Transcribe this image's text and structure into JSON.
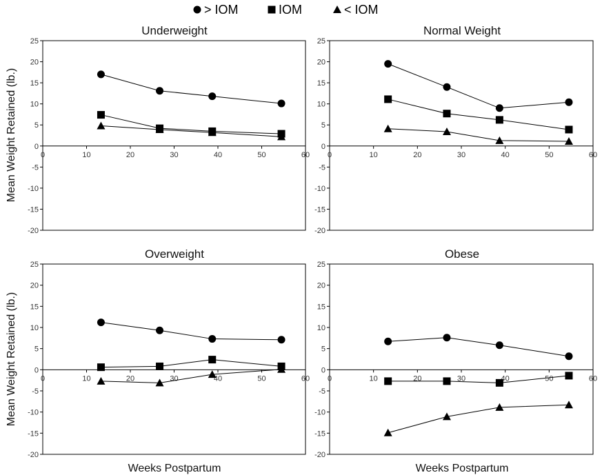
{
  "chart_data": {
    "type": "line",
    "legend": {
      "placement": "top-center",
      "entries": [
        {
          "label": "> IOM",
          "marker": "circle"
        },
        {
          "label": "IOM",
          "marker": "square"
        },
        {
          "label": "< IOM",
          "marker": "triangle"
        }
      ]
    },
    "x_axis_label": "Weeks Postpartum",
    "y_axis_label": "Mean Weight Retained (lb.)",
    "xlim": [
      0,
      60
    ],
    "ylim": [
      -20,
      25
    ],
    "x_ticks": [
      "0",
      "10",
      "20",
      "30",
      "40",
      "50",
      "60"
    ],
    "y_ticks": [
      "25",
      "20",
      "15",
      "10",
      "5",
      "0",
      "-5",
      "-10",
      "-15",
      "-20"
    ],
    "grid": false,
    "panels": [
      {
        "title": "Underweight",
        "x": [
          13.3,
          26.7,
          38.7,
          54.5
        ],
        "series": [
          {
            "name": "> IOM",
            "values": [
              17.0,
              13.1,
              11.8,
              10.1
            ]
          },
          {
            "name": "IOM",
            "values": [
              7.4,
              4.2,
              3.5,
              2.9
            ]
          },
          {
            "name": "< IOM",
            "values": [
              4.8,
              3.9,
              3.2,
              2.2
            ]
          }
        ]
      },
      {
        "title": "Normal Weight",
        "x": [
          13.3,
          26.7,
          38.7,
          54.5
        ],
        "series": [
          {
            "name": "> IOM",
            "values": [
              19.5,
              14.0,
              9.0,
              10.4
            ]
          },
          {
            "name": "IOM",
            "values": [
              11.1,
              7.7,
              6.2,
              3.9
            ]
          },
          {
            "name": "< IOM",
            "values": [
              4.1,
              3.4,
              1.3,
              1.1
            ]
          }
        ]
      },
      {
        "title": "Overweight",
        "x": [
          13.3,
          26.7,
          38.7,
          54.5
        ],
        "series": [
          {
            "name": "> IOM",
            "values": [
              11.2,
              9.3,
              7.3,
              7.1
            ]
          },
          {
            "name": "IOM",
            "values": [
              0.6,
              0.8,
              2.4,
              0.8
            ]
          },
          {
            "name": "< IOM",
            "values": [
              -2.7,
              -3.1,
              -1.1,
              0.1
            ]
          }
        ]
      },
      {
        "title": "Obese",
        "x": [
          13.3,
          26.7,
          38.7,
          54.5
        ],
        "series": [
          {
            "name": "> IOM",
            "values": [
              6.7,
              7.6,
              5.8,
              3.2
            ]
          },
          {
            "name": "IOM",
            "values": [
              -2.7,
              -2.7,
              -3.1,
              -1.4
            ]
          },
          {
            "name": "< IOM",
            "values": [
              -14.9,
              -11.1,
              -8.9,
              -8.3
            ]
          }
        ]
      }
    ]
  }
}
